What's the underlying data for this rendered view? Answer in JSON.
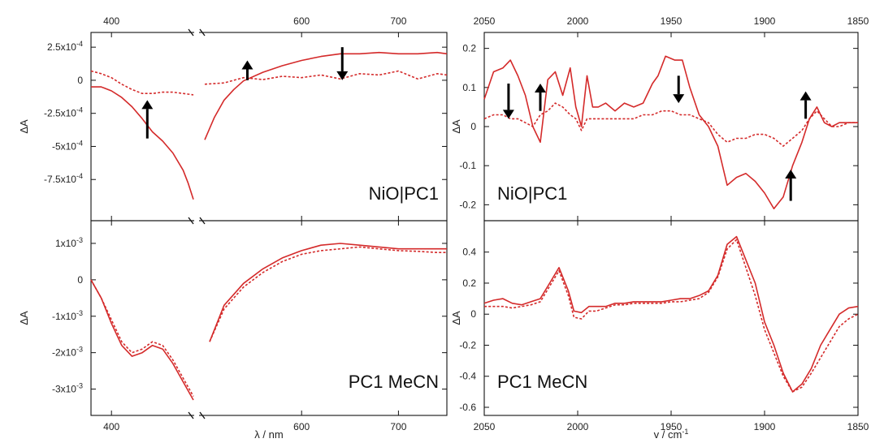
{
  "figure_labels": {
    "left_top_panel": "NiO|PC1",
    "left_bottom_panel": "PC1 MeCN",
    "right_top_panel": "NiO|PC1",
    "right_bottom_panel": "PC1 MeCN"
  },
  "chart_data": [
    {
      "id": "vis_top",
      "type": "line",
      "panel_label": "NiO|PC1",
      "xlabel": "",
      "ylabel": "ΔA",
      "x_segments": [
        [
          380,
          480
        ],
        [
          500,
          750
        ]
      ],
      "xticks": [
        400,
        600,
        700
      ],
      "xtick_labels": [
        "400",
        "600",
        "700"
      ],
      "ylim": [
        -0.001,
        0.0003
      ],
      "yticks": [
        0.00025,
        0,
        -0.00025,
        -0.0005,
        -0.00075
      ],
      "ytick_labels": [
        "2.5x10-4",
        "0",
        "-2.5x10-4",
        "-5x10-4",
        "-7.5x10-4"
      ],
      "series": [
        {
          "style": "solid",
          "x": [
            380,
            390,
            400,
            410,
            420,
            430,
            440,
            450,
            460,
            470,
            475,
            480,
            500,
            510,
            520,
            530,
            540,
            560,
            580,
            600,
            620,
            640,
            660,
            680,
            700,
            720,
            740,
            750
          ],
          "y": [
            -5e-05,
            -5e-05,
            -8e-05,
            -0.00013,
            -0.0002,
            -0.00029,
            -0.00039,
            -0.00046,
            -0.00055,
            -0.00068,
            -0.00078,
            -0.0009,
            -0.00045,
            -0.00028,
            -0.00015,
            -7e-05,
            -5e-06,
            6e-05,
            0.00011,
            0.00015,
            0.00018,
            0.0002,
            0.0002,
            0.00021,
            0.0002,
            0.0002,
            0.00021,
            0.0002
          ]
        },
        {
          "style": "dotted",
          "x": [
            380,
            390,
            400,
            410,
            420,
            430,
            440,
            450,
            460,
            470,
            480,
            500,
            520,
            540,
            560,
            580,
            600,
            620,
            640,
            660,
            680,
            700,
            720,
            740,
            750
          ],
          "y": [
            7e-05,
            5e-05,
            2e-05,
            -3e-05,
            -7e-05,
            -0.0001,
            -0.0001,
            -9e-05,
            -9e-05,
            -0.0001,
            -0.00011,
            -3e-05,
            -2e-05,
            2e-05,
            5e-06,
            3e-05,
            2e-05,
            4e-05,
            1e-05,
            5e-05,
            4e-05,
            7e-05,
            1e-05,
            5e-05,
            4e-05
          ]
        }
      ],
      "arrows": [
        {
          "x": 435,
          "from": -0.00044,
          "to": -0.00015,
          "direction": "up"
        },
        {
          "x": 544,
          "from": 0.0,
          "to": 0.00015,
          "direction": "up"
        },
        {
          "x": 642,
          "from": 0.00025,
          "to": 0.0,
          "direction": "down"
        }
      ]
    },
    {
      "id": "vis_bottom",
      "type": "line",
      "panel_label": "PC1 MeCN",
      "xlabel": "λ / nm",
      "ylabel": "ΔA",
      "x_segments": [
        [
          380,
          480
        ],
        [
          500,
          750
        ]
      ],
      "xticks": [
        400,
        600,
        700
      ],
      "xtick_labels": [
        "400",
        "600",
        "700"
      ],
      "ylim": [
        -0.0035,
        0.0014
      ],
      "yticks": [
        0.001,
        0,
        -0.001,
        -0.002,
        -0.003
      ],
      "ytick_labels": [
        "1x10-3",
        "0",
        "-1x10-3",
        "-2x10-3",
        "-3x10-3"
      ],
      "series": [
        {
          "style": "solid",
          "x": [
            380,
            390,
            400,
            410,
            420,
            430,
            440,
            450,
            460,
            470,
            480,
            505,
            520,
            540,
            560,
            580,
            600,
            620,
            640,
            660,
            680,
            700,
            720,
            740,
            750
          ],
          "y": [
            0.0,
            -0.0005,
            -0.0012,
            -0.0018,
            -0.0021,
            -0.002,
            -0.0018,
            -0.0019,
            -0.0023,
            -0.0028,
            -0.0033,
            -0.0017,
            -0.0007,
            -0.0001,
            0.0003,
            0.0006,
            0.0008,
            0.00095,
            0.001,
            0.00095,
            0.0009,
            0.00085,
            0.00085,
            0.00085,
            0.00085
          ]
        },
        {
          "style": "dotted",
          "x": [
            380,
            390,
            400,
            410,
            420,
            430,
            440,
            450,
            460,
            470,
            480,
            505,
            520,
            540,
            560,
            580,
            600,
            620,
            640,
            660,
            680,
            700,
            720,
            740,
            750
          ],
          "y": [
            0.0,
            -0.0005,
            -0.0011,
            -0.0017,
            -0.002,
            -0.0019,
            -0.0017,
            -0.0018,
            -0.0022,
            -0.0027,
            -0.0032,
            -0.0017,
            -0.0008,
            -0.0002,
            0.0002,
            0.0005,
            0.0007,
            0.0008,
            0.00085,
            0.0009,
            0.00085,
            0.0008,
            0.00078,
            0.00075,
            0.00075
          ]
        }
      ],
      "arrows": []
    },
    {
      "id": "ir_top",
      "type": "line",
      "panel_label": "NiO|PC1",
      "xlabel": "",
      "ylabel": "ΔA",
      "xlim": [
        2050,
        1850
      ],
      "xticks": [
        2050,
        2000,
        1950,
        1900,
        1850
      ],
      "xtick_labels": [
        "2050",
        "2000",
        "1950",
        "1900",
        "1850"
      ],
      "ylim": [
        -0.22,
        0.22
      ],
      "yticks": [
        0.2,
        0.1,
        0,
        -0.1,
        -0.2
      ],
      "ytick_labels": [
        "0.2",
        "0.1",
        "0",
        "-0.1",
        "-0.2"
      ],
      "series": [
        {
          "style": "solid",
          "x": [
            2050,
            2045,
            2040,
            2036,
            2032,
            2028,
            2024,
            2020,
            2016,
            2012,
            2008,
            2004,
            2001,
            1998,
            1995,
            1992,
            1989,
            1985,
            1980,
            1975,
            1970,
            1965,
            1960,
            1957,
            1953,
            1948,
            1944,
            1940,
            1935,
            1930,
            1925,
            1920,
            1915,
            1910,
            1905,
            1900,
            1895,
            1890,
            1885,
            1880,
            1876,
            1872,
            1868,
            1864,
            1860,
            1855,
            1850
          ],
          "y": [
            0.07,
            0.14,
            0.15,
            0.17,
            0.13,
            0.08,
            0.0,
            -0.04,
            0.12,
            0.14,
            0.08,
            0.15,
            0.05,
            0.0,
            0.13,
            0.05,
            0.05,
            0.06,
            0.04,
            0.06,
            0.05,
            0.06,
            0.11,
            0.13,
            0.18,
            0.17,
            0.17,
            0.1,
            0.03,
            0.0,
            -0.05,
            -0.15,
            -0.13,
            -0.12,
            -0.14,
            -0.17,
            -0.21,
            -0.18,
            -0.1,
            -0.04,
            0.02,
            0.05,
            0.01,
            0.0,
            0.01,
            0.01,
            0.01
          ]
        },
        {
          "style": "dotted",
          "x": [
            2050,
            2045,
            2040,
            2036,
            2032,
            2028,
            2024,
            2020,
            2016,
            2012,
            2008,
            2004,
            2001,
            1998,
            1995,
            1990,
            1985,
            1980,
            1975,
            1970,
            1965,
            1960,
            1955,
            1950,
            1945,
            1940,
            1935,
            1930,
            1925,
            1920,
            1915,
            1910,
            1905,
            1900,
            1895,
            1890,
            1885,
            1880,
            1876,
            1872,
            1868,
            1864,
            1860,
            1855,
            1850
          ],
          "y": [
            0.02,
            0.03,
            0.03,
            0.02,
            0.02,
            0.01,
            0.0,
            0.03,
            0.04,
            0.06,
            0.05,
            0.03,
            0.02,
            -0.01,
            0.02,
            0.02,
            0.02,
            0.02,
            0.02,
            0.02,
            0.03,
            0.03,
            0.04,
            0.04,
            0.03,
            0.03,
            0.02,
            0.01,
            -0.02,
            -0.04,
            -0.03,
            -0.03,
            -0.02,
            -0.02,
            -0.03,
            -0.05,
            -0.03,
            -0.01,
            0.02,
            0.04,
            0.02,
            0.0,
            0.0,
            0.01,
            0.01
          ]
        }
      ],
      "arrows": [
        {
          "x": 2037,
          "from": 0.11,
          "to": 0.02,
          "direction": "down"
        },
        {
          "x": 2020,
          "from": 0.04,
          "to": 0.11,
          "direction": "up"
        },
        {
          "x": 1946,
          "from": 0.13,
          "to": 0.06,
          "direction": "down"
        },
        {
          "x": 1886,
          "from": -0.19,
          "to": -0.11,
          "direction": "up"
        },
        {
          "x": 1878,
          "from": 0.02,
          "to": 0.09,
          "direction": "up"
        }
      ]
    },
    {
      "id": "ir_bottom",
      "type": "line",
      "panel_label": "PC1 MeCN",
      "xlabel": "v / cm-1",
      "ylabel": "ΔA",
      "xlim": [
        2050,
        1850
      ],
      "xticks": [
        2050,
        2000,
        1950,
        1900,
        1850
      ],
      "xtick_labels": [
        "2050",
        "2000",
        "1950",
        "1900",
        "1850"
      ],
      "ylim": [
        -0.6,
        0.55
      ],
      "yticks": [
        0.4,
        0.2,
        0,
        -0.2,
        -0.4,
        -0.6
      ],
      "ytick_labels": [
        "0.4",
        "0.2",
        "0",
        "-0.2",
        "-0.4",
        "-0.6"
      ],
      "series": [
        {
          "style": "solid",
          "x": [
            2050,
            2045,
            2040,
            2035,
            2030,
            2025,
            2020,
            2015,
            2010,
            2005,
            2002,
            1998,
            1994,
            1990,
            1985,
            1980,
            1975,
            1970,
            1965,
            1960,
            1955,
            1950,
            1945,
            1940,
            1935,
            1930,
            1925,
            1920,
            1915,
            1910,
            1905,
            1900,
            1895,
            1890,
            1885,
            1880,
            1875,
            1870,
            1865,
            1860,
            1855,
            1850
          ],
          "y": [
            0.07,
            0.09,
            0.1,
            0.07,
            0.06,
            0.08,
            0.1,
            0.2,
            0.3,
            0.15,
            0.02,
            0.01,
            0.05,
            0.05,
            0.05,
            0.07,
            0.07,
            0.08,
            0.08,
            0.08,
            0.08,
            0.09,
            0.1,
            0.1,
            0.12,
            0.15,
            0.25,
            0.45,
            0.5,
            0.35,
            0.2,
            -0.05,
            -0.2,
            -0.38,
            -0.5,
            -0.45,
            -0.35,
            -0.2,
            -0.1,
            0.0,
            0.04,
            0.05
          ]
        },
        {
          "style": "dotted",
          "x": [
            2050,
            2045,
            2040,
            2035,
            2030,
            2025,
            2020,
            2015,
            2010,
            2005,
            2002,
            1998,
            1994,
            1990,
            1985,
            1980,
            1975,
            1970,
            1965,
            1960,
            1955,
            1950,
            1945,
            1940,
            1935,
            1930,
            1925,
            1920,
            1915,
            1910,
            1905,
            1900,
            1895,
            1890,
            1885,
            1880,
            1875,
            1870,
            1865,
            1860,
            1855,
            1850
          ],
          "y": [
            0.05,
            0.05,
            0.05,
            0.04,
            0.05,
            0.06,
            0.08,
            0.18,
            0.28,
            0.12,
            -0.02,
            -0.03,
            0.02,
            0.02,
            0.04,
            0.06,
            0.06,
            0.07,
            0.07,
            0.07,
            0.07,
            0.08,
            0.08,
            0.09,
            0.1,
            0.14,
            0.24,
            0.42,
            0.48,
            0.3,
            0.12,
            -0.1,
            -0.25,
            -0.4,
            -0.5,
            -0.47,
            -0.38,
            -0.28,
            -0.18,
            -0.08,
            -0.03,
            0.0
          ]
        }
      ],
      "arrows": []
    }
  ]
}
